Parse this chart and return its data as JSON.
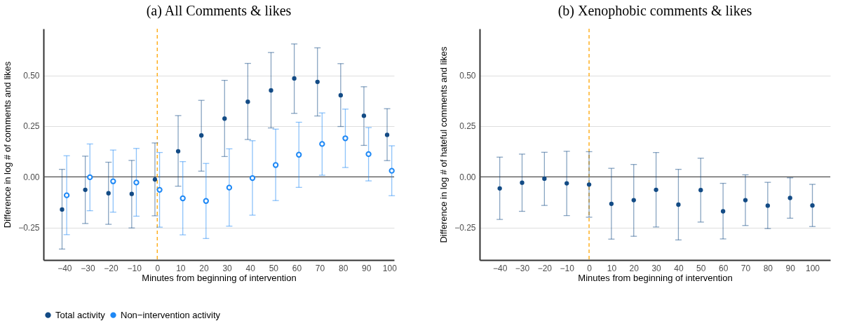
{
  "chart_data": [
    {
      "type": "scatter",
      "title": "(a) All Comments & likes",
      "xlabel": "Minutes from beginning of intervention",
      "ylabel": "Difference in log # of comments and likes",
      "xlim": [
        -49,
        102
      ],
      "xticks": [
        -40,
        -30,
        -20,
        -10,
        0,
        10,
        20,
        30,
        40,
        50,
        60,
        70,
        80,
        90,
        100
      ],
      "ylim": [
        -0.41,
        0.73
      ],
      "yticks": [
        {
          "value": -0.25,
          "label": "−0.25"
        },
        {
          "value": 0,
          "label": "0.00"
        },
        {
          "value": 0.25,
          "label": "0.25"
        },
        {
          "value": 0.5,
          "label": "0.50"
        }
      ],
      "grid": "y",
      "legend": "bottom",
      "marker": "circle",
      "ref_lines": [
        {
          "axis": "y",
          "value": 0,
          "color": "#4d4d4d",
          "line_style": "solid"
        },
        {
          "axis": "x",
          "value": 0,
          "color": "#ffa500",
          "line_style": "dashed"
        }
      ],
      "series": [
        {
          "name": "Total activity",
          "color": "#134b85",
          "x": [
            -41,
            -31,
            -21,
            -11,
            -1,
            9,
            19,
            29,
            39,
            49,
            59,
            69,
            79,
            89,
            99
          ],
          "values": [
            -0.161,
            -0.064,
            -0.081,
            -0.084,
            -0.013,
            0.126,
            0.204,
            0.287,
            0.37,
            0.426,
            0.485,
            0.468,
            0.402,
            0.301,
            0.207
          ],
          "errors": [
            [
              -0.356,
              0.037
            ],
            [
              -0.23,
              0.102
            ],
            [
              -0.234,
              0.072
            ],
            [
              -0.252,
              0.081
            ],
            [
              -0.192,
              0.167
            ],
            [
              -0.046,
              0.302
            ],
            [
              0.028,
              0.377
            ],
            [
              0.1,
              0.476
            ],
            [
              0.184,
              0.559
            ],
            [
              0.241,
              0.613
            ],
            [
              0.313,
              0.655
            ],
            [
              0.3,
              0.636
            ],
            [
              0.248,
              0.558
            ],
            [
              0.155,
              0.444
            ],
            [
              0.08,
              0.336
            ]
          ]
        },
        {
          "name": "Non−intervention activity",
          "color": "#1e88f5",
          "x": [
            -39,
            -29,
            -19,
            -9,
            1,
            11,
            21,
            31,
            41,
            51,
            61,
            71,
            81,
            91,
            101
          ],
          "values": [
            -0.091,
            -0.002,
            -0.022,
            -0.028,
            -0.064,
            -0.106,
            -0.119,
            -0.053,
            -0.006,
            0.058,
            0.109,
            0.162,
            0.19,
            0.112,
            0.03
          ],
          "errors": [
            [
              -0.285,
              0.104
            ],
            [
              -0.167,
              0.162
            ],
            [
              -0.174,
              0.132
            ],
            [
              -0.194,
              0.14
            ],
            [
              -0.248,
              0.12
            ],
            [
              -0.286,
              0.075
            ],
            [
              -0.304,
              0.066
            ],
            [
              -0.243,
              0.138
            ],
            [
              -0.189,
              0.178
            ],
            [
              -0.117,
              0.235
            ],
            [
              -0.052,
              0.269
            ],
            [
              0.008,
              0.315
            ],
            [
              0.046,
              0.334
            ],
            [
              -0.02,
              0.243
            ],
            [
              -0.093,
              0.153
            ]
          ]
        }
      ]
    },
    {
      "type": "scatter",
      "title": "(b) Xenophobic comments & likes",
      "xlabel": "Minutes from beginning of intervention",
      "ylabel": "Difference in log # of hateful comments and likes",
      "x": [
        -40,
        -30,
        -20,
        -10,
        0,
        10,
        20,
        30,
        40,
        50,
        60,
        70,
        80,
        90,
        100
      ],
      "xlim": [
        -49,
        108
      ],
      "xticks": [
        -40,
        -30,
        -20,
        -10,
        0,
        10,
        20,
        30,
        40,
        50,
        60,
        70,
        80,
        90,
        100
      ],
      "ylim": [
        -0.41,
        0.73
      ],
      "yticks": [
        {
          "value": -0.25,
          "label": "−0.25"
        },
        {
          "value": 0,
          "label": "0.00"
        },
        {
          "value": 0.25,
          "label": "0.25"
        },
        {
          "value": 0.5,
          "label": "0.50"
        }
      ],
      "grid": "y",
      "marker": "circle",
      "ref_lines": [
        {
          "axis": "y",
          "value": 0,
          "color": "#4d4d4d",
          "line_style": "solid"
        },
        {
          "axis": "x",
          "value": 0,
          "color": "#ffa500",
          "line_style": "dashed"
        }
      ],
      "series": [
        {
          "color": "#134b85",
          "values": [
            -0.057,
            -0.029,
            -0.009,
            -0.032,
            -0.038,
            -0.133,
            -0.115,
            -0.064,
            -0.137,
            -0.065,
            -0.17,
            -0.115,
            -0.142,
            -0.104,
            -0.141
          ],
          "errors": [
            [
              -0.21,
              0.097
            ],
            [
              -0.17,
              0.112
            ],
            [
              -0.141,
              0.121
            ],
            [
              -0.191,
              0.126
            ],
            [
              -0.199,
              0.124
            ],
            [
              -0.307,
              0.042
            ],
            [
              -0.293,
              0.061
            ],
            [
              -0.247,
              0.12
            ],
            [
              -0.311,
              0.037
            ],
            [
              -0.223,
              0.092
            ],
            [
              -0.306,
              -0.032
            ],
            [
              -0.24,
              0.01
            ],
            [
              -0.255,
              -0.027
            ],
            [
              -0.204,
              -0.005
            ],
            [
              -0.245,
              -0.037
            ]
          ]
        }
      ]
    }
  ]
}
